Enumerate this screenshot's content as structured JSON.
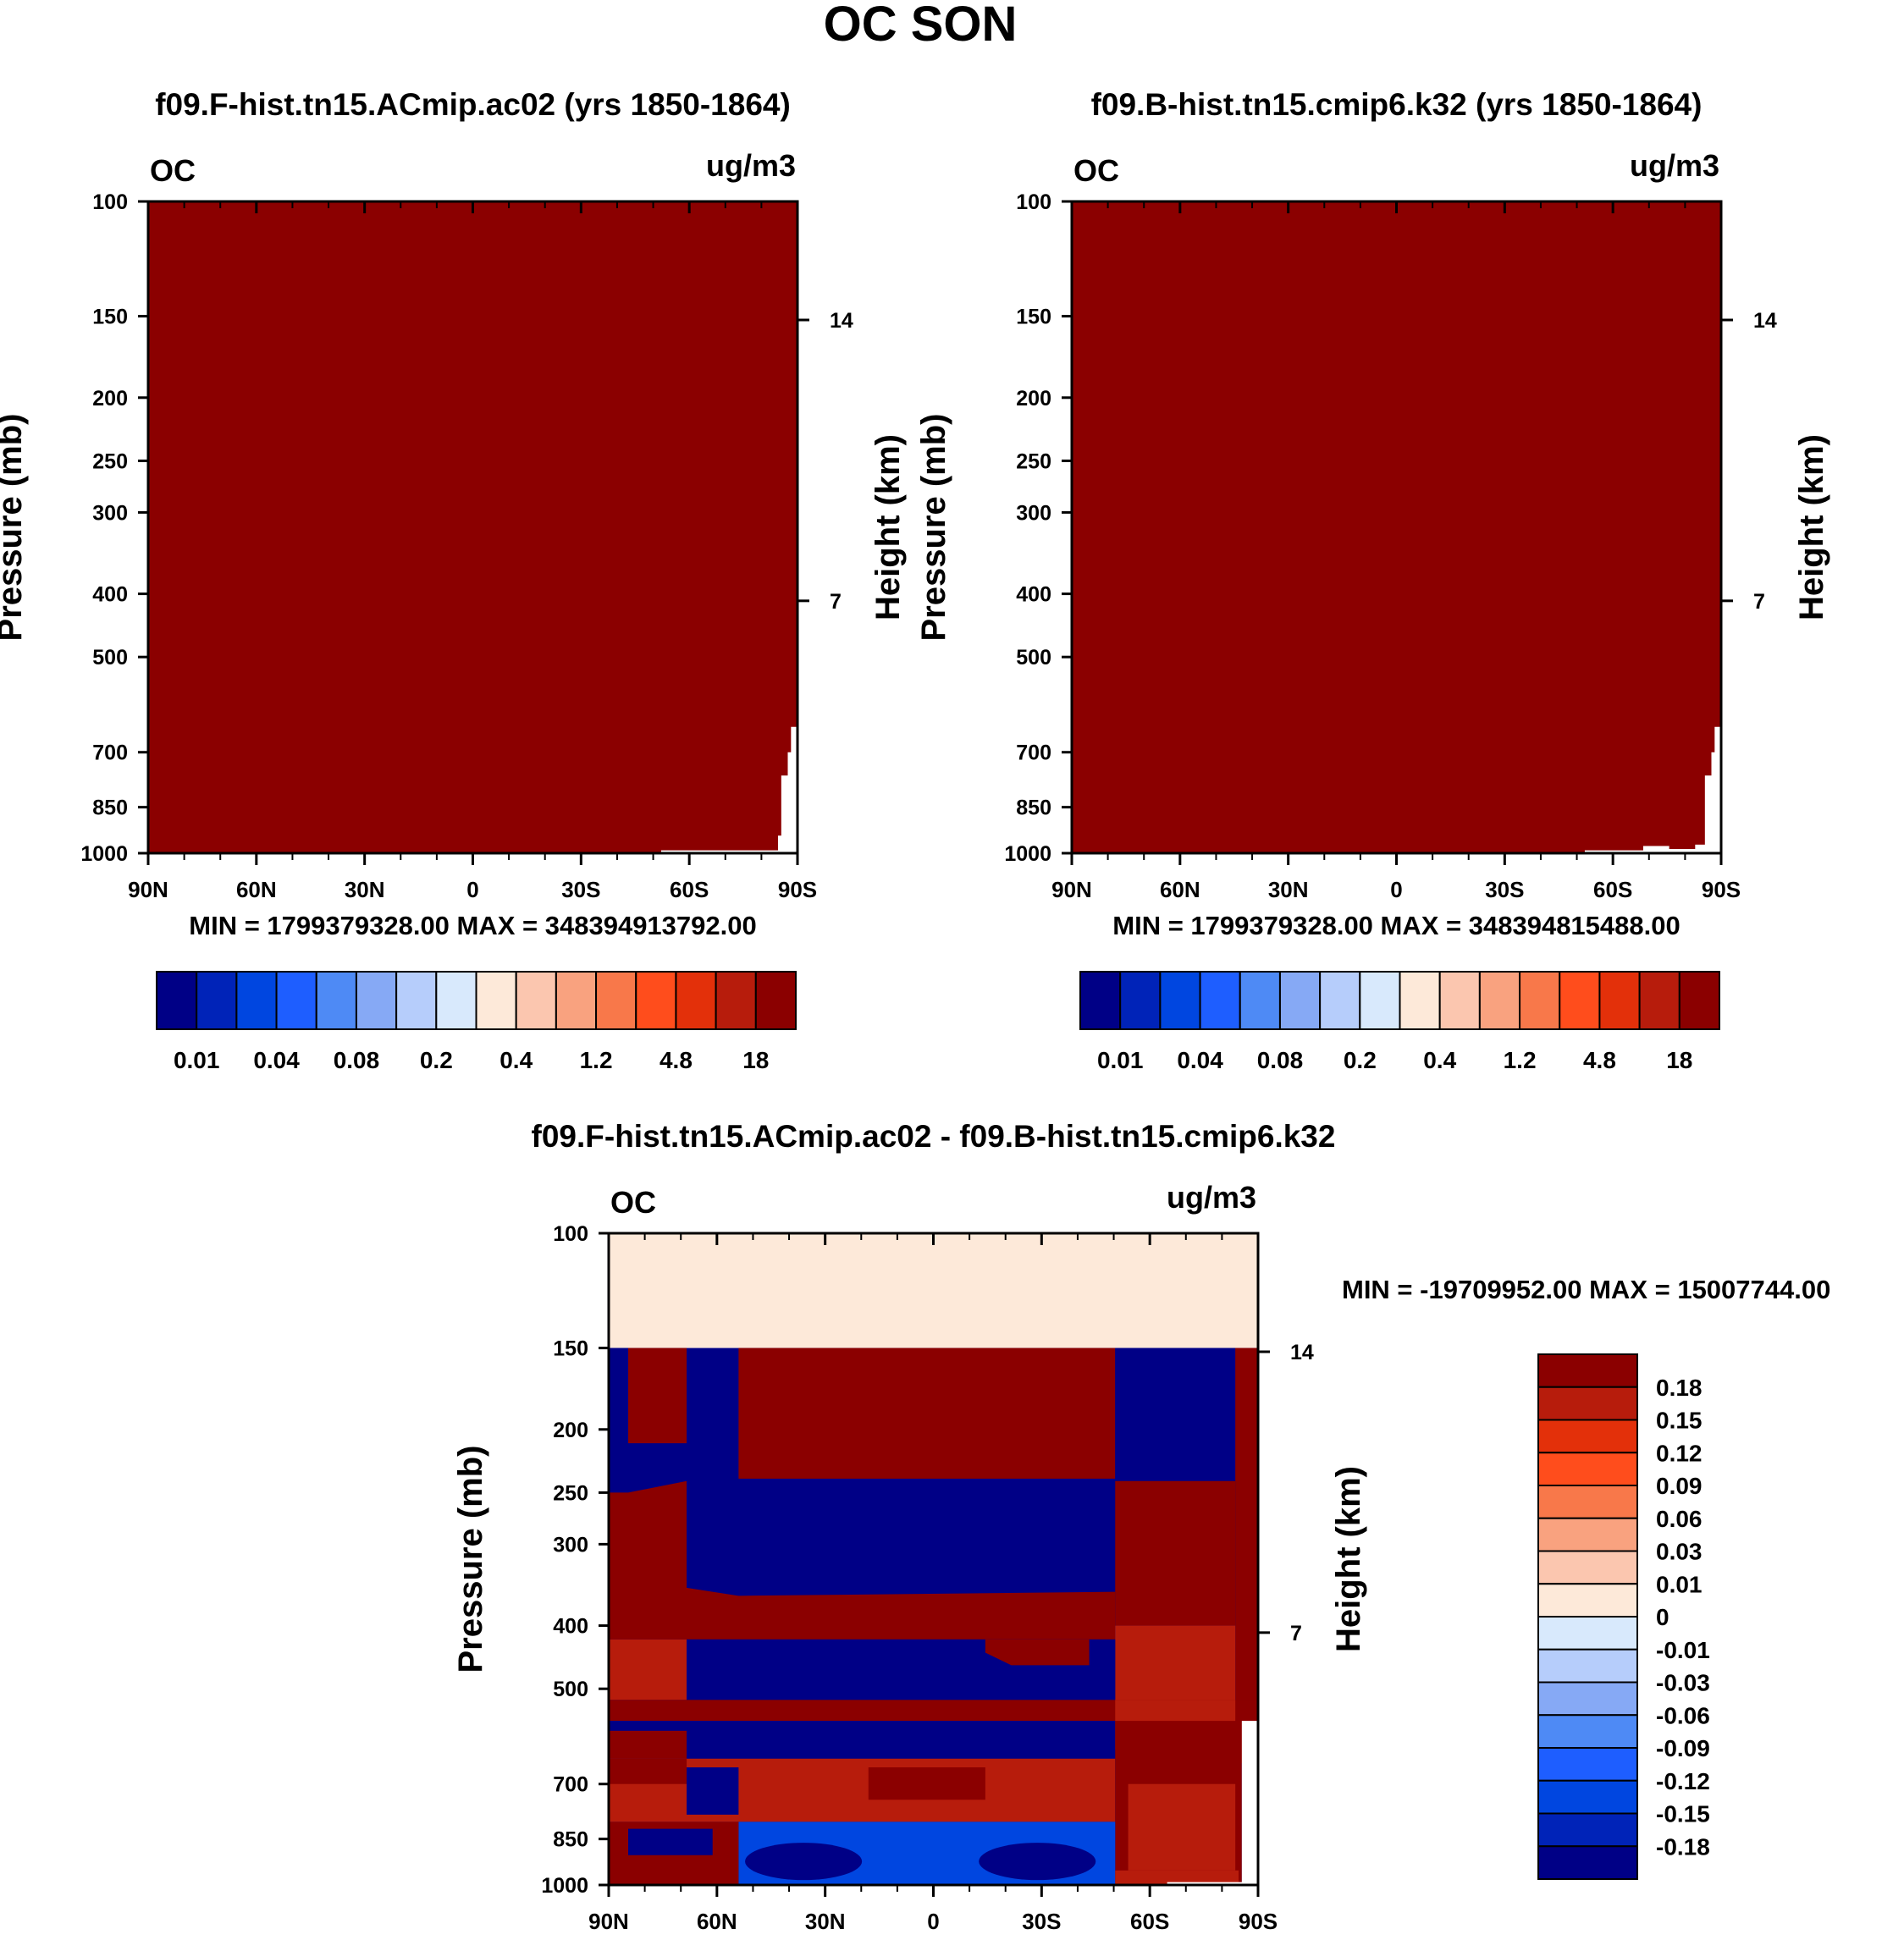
{
  "title": "OC SON",
  "colors": {
    "fill_dark_red": "#8b0000",
    "white": "#ffffff",
    "frame": "#000000",
    "pale": "#fde9d9"
  },
  "abs_scale": {
    "colors": [
      "#000086",
      "#0023b8",
      "#0046e0",
      "#1e5eff",
      "#4e8af5",
      "#86a9f5",
      "#b6cdfb",
      "#d8e9fc",
      "#fde9d9",
      "#fbc6af",
      "#f9a27f",
      "#f8784a",
      "#ff4d1c",
      "#e3300a",
      "#b71c0c",
      "#8b0000"
    ],
    "labels": [
      "0.01",
      "0.04",
      "0.08",
      "0.2",
      "0.4",
      "1.2",
      "4.8",
      "18"
    ]
  },
  "diff_scale": {
    "colors": [
      "#8b0000",
      "#b71c0c",
      "#e3300a",
      "#ff4d1c",
      "#f8784a",
      "#f9a27f",
      "#fbc6af",
      "#fde9d9",
      "#d8e9fc",
      "#b6cdfb",
      "#86a9f5",
      "#4e8af5",
      "#1e5eff",
      "#0046e0",
      "#0023b8",
      "#000086"
    ],
    "labels": [
      "0.18",
      "0.15",
      "0.12",
      "0.09",
      "0.06",
      "0.03",
      "0.01",
      "0",
      "-0.01",
      "-0.03",
      "-0.06",
      "-0.09",
      "-0.12",
      "-0.15",
      "-0.18"
    ]
  },
  "chart_data": [
    {
      "type": "heatmap",
      "id": "panel-left",
      "title": "f09.F-hist.tn15.ACmip.ac02 (yrs 1850-1864)",
      "corner_left": "OC",
      "corner_right": "ug/m3",
      "ylabel": "Pressure (mb)",
      "ylabel_right": "Height (km)",
      "yticks": [
        "100",
        "150",
        "200",
        "250",
        "300",
        "400",
        "500",
        "700",
        "850",
        "1000"
      ],
      "yticks_right": [
        "14",
        "7"
      ],
      "xticks": [
        "90N",
        "60N",
        "30N",
        "0",
        "30S",
        "60S",
        "90S"
      ],
      "stats": "MIN = 1799379328.00   MAX = 348394913792.00"
    },
    {
      "type": "heatmap",
      "id": "panel-right",
      "title": "f09.B-hist.tn15.cmip6.k32 (yrs 1850-1864)",
      "corner_left": "OC",
      "corner_right": "ug/m3",
      "ylabel": "Pressure (mb)",
      "ylabel_right": "Height (km)",
      "yticks": [
        "100",
        "150",
        "200",
        "250",
        "300",
        "400",
        "500",
        "700",
        "850",
        "1000"
      ],
      "yticks_right": [
        "14",
        "7"
      ],
      "xticks": [
        "90N",
        "60N",
        "30N",
        "0",
        "30S",
        "60S",
        "90S"
      ],
      "stats": "MIN = 1799379328.00   MAX = 348394815488.00"
    },
    {
      "type": "heatmap",
      "id": "panel-diff",
      "title": "f09.F-hist.tn15.ACmip.ac02 - f09.B-hist.tn15.cmip6.k32",
      "corner_left": "OC",
      "corner_right": "ug/m3",
      "ylabel": "Pressure (mb)",
      "ylabel_right": "Height (km)",
      "yticks": [
        "100",
        "150",
        "200",
        "250",
        "300",
        "400",
        "500",
        "700",
        "850",
        "1000"
      ],
      "yticks_right": [
        "14",
        "7"
      ],
      "xticks": [
        "90N",
        "60N",
        "30N",
        "0",
        "30S",
        "60S",
        "90S"
      ],
      "stats": "MIN = -19709952.00   MAX = 15007744.00"
    }
  ]
}
